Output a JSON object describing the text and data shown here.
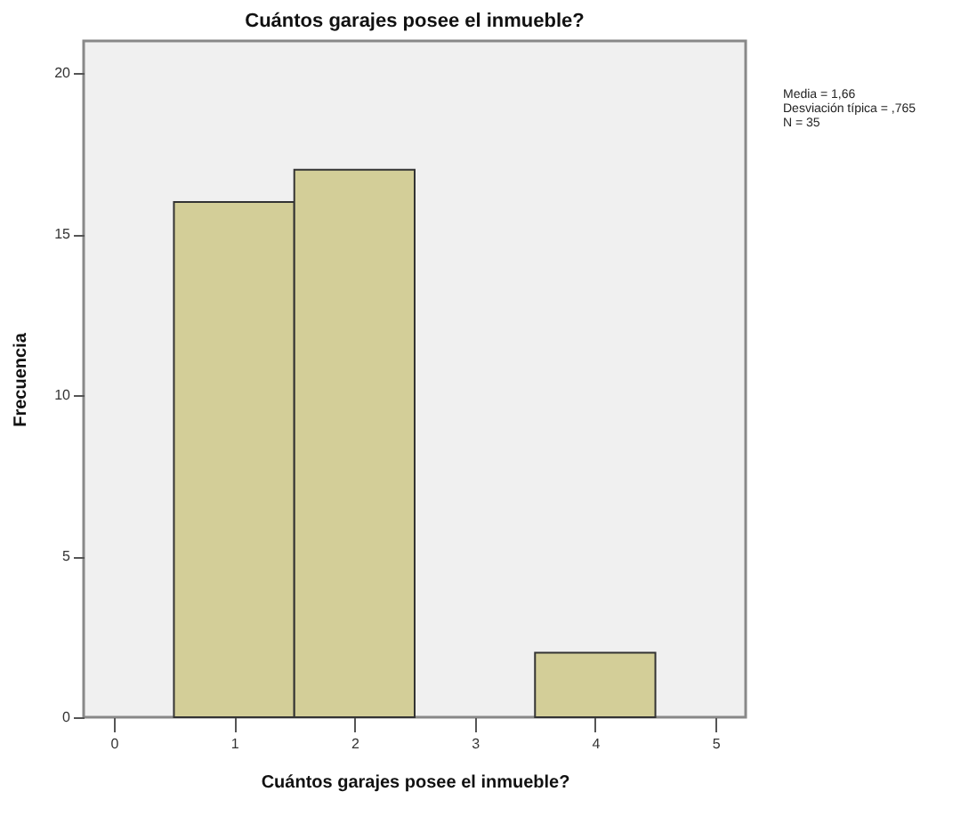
{
  "chart_data": {
    "type": "histogram",
    "title": "Cuántos garajes posee el inmueble?",
    "xlabel": "Cuántos garajes posee el inmueble?",
    "ylabel": "Frecuencia",
    "bins": [
      0.5,
      1.5,
      2.5,
      3.5,
      4.5
    ],
    "values": [
      16,
      17,
      0,
      2
    ],
    "color": "#d3ce98",
    "xlim": [
      -0.25,
      5.25
    ],
    "xticks": [
      0,
      1,
      2,
      3,
      4,
      5
    ],
    "ylim": [
      0,
      21
    ],
    "yticks": [
      0,
      5,
      10,
      15,
      20
    ],
    "grid": false,
    "annotations": [
      "Media = 1,66",
      "Desviación típica = ,765",
      "N = 35"
    ]
  }
}
